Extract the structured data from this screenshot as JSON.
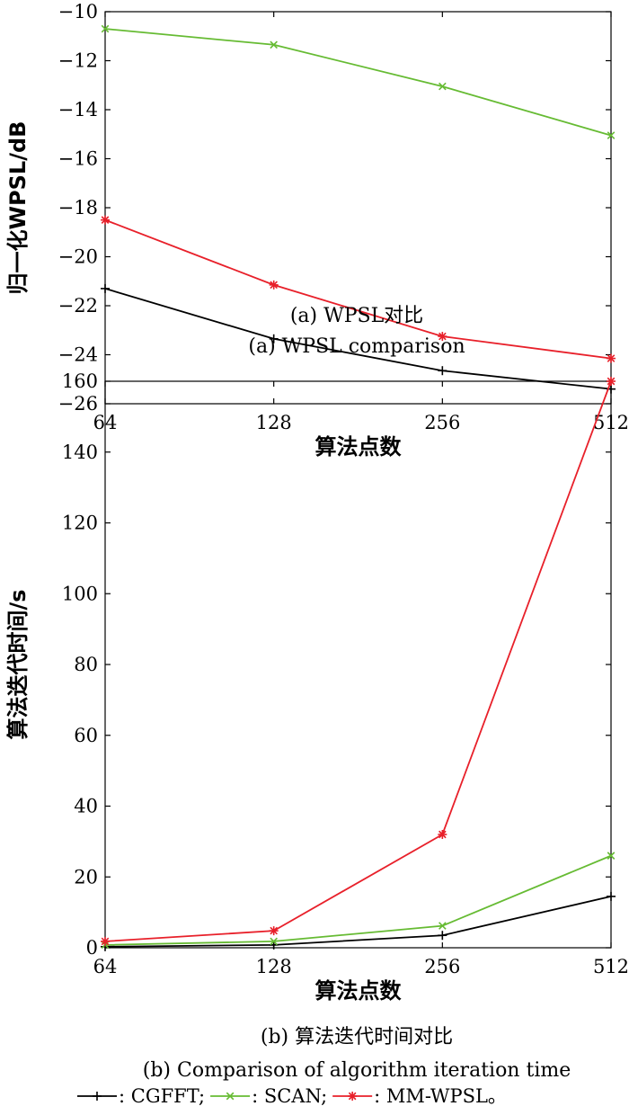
{
  "chart_data": [
    {
      "type": "line",
      "categories": [
        "64",
        "128",
        "256",
        "512"
      ],
      "xlabel": "算法点数",
      "ylabel": "归一化WPSL/dB",
      "ylim": [
        -26,
        -10
      ],
      "yticks": [
        -10,
        -12,
        -14,
        -16,
        -18,
        -20,
        -22,
        -24,
        -26
      ],
      "grid": false,
      "caption_cn": "(a) WPSL对比",
      "caption_en": "(a) WPSL comparison",
      "series": [
        {
          "name": "CGFFT",
          "color": "#000000",
          "marker": "plus",
          "values": [
            -21.3,
            -23.35,
            -24.65,
            -25.4
          ]
        },
        {
          "name": "SCAN",
          "color": "#66bb33",
          "marker": "x",
          "values": [
            -10.7,
            -11.35,
            -13.05,
            -15.05
          ]
        },
        {
          "name": "MM-WPSL",
          "color": "#e8202a",
          "marker": "star",
          "values": [
            -18.5,
            -21.15,
            -23.25,
            -24.15
          ]
        }
      ]
    },
    {
      "type": "line",
      "categories": [
        "64",
        "128",
        "256",
        "512"
      ],
      "xlabel": "算法点数",
      "ylabel": "算法迭代时间/s",
      "ylim": [
        0,
        160
      ],
      "yticks": [
        0,
        20,
        40,
        60,
        80,
        100,
        120,
        140,
        160
      ],
      "grid": false,
      "caption_cn": "(b) 算法迭代时间对比",
      "caption_en": "(b) Comparison of algorithm iteration time",
      "series": [
        {
          "name": "CGFFT",
          "color": "#000000",
          "marker": "plus",
          "values": [
            0.3,
            0.8,
            3.5,
            14.5
          ]
        },
        {
          "name": "SCAN",
          "color": "#66bb33",
          "marker": "x",
          "values": [
            0.8,
            1.8,
            6.2,
            26
          ]
        },
        {
          "name": "MM-WPSL",
          "color": "#e8202a",
          "marker": "star",
          "values": [
            1.8,
            4.8,
            32,
            160
          ]
        }
      ]
    }
  ],
  "legend": {
    "items": [
      {
        "label": ": CGFFT;",
        "color": "#000000",
        "marker": "plus"
      },
      {
        "label": ": SCAN;",
        "color": "#66bb33",
        "marker": "x"
      },
      {
        "label": ": MM-WPSL。",
        "color": "#e8202a",
        "marker": "star"
      }
    ]
  }
}
